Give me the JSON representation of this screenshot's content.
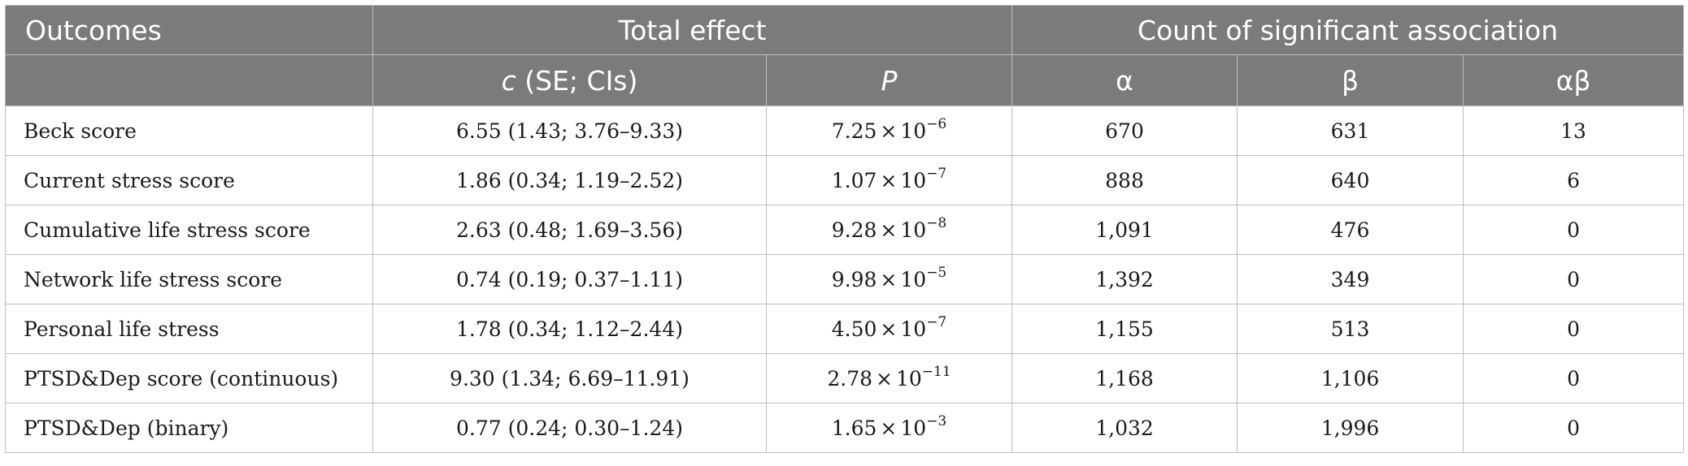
{
  "table": {
    "header_row1": {
      "outcomes": "Outcomes",
      "total_effect": "Total effect",
      "count_sig": "Count of significant association"
    },
    "header_row2": {
      "c_label": "c",
      "c_rest": " (SE; CIs)",
      "p_label": "P",
      "alpha": "α",
      "beta": "β",
      "alphabeta": "αβ"
    },
    "rows": [
      {
        "outcome": "Beck score",
        "c": "6.55 (1.43; 3.76–9.33)",
        "p_mant": "7.25",
        "p_times": "×",
        "p_base": "10",
        "p_exp": "−6",
        "alpha": "670",
        "beta": "631",
        "alphabeta": "13"
      },
      {
        "outcome": "Current stress score",
        "c": "1.86 (0.34; 1.19–2.52)",
        "p_mant": "1.07",
        "p_times": "×",
        "p_base": "10",
        "p_exp": "−7",
        "alpha": "888",
        "beta": "640",
        "alphabeta": "6"
      },
      {
        "outcome": "Cumulative life stress score",
        "c": "2.63 (0.48; 1.69–3.56)",
        "p_mant": "9.28",
        "p_times": "×",
        "p_base": "10",
        "p_exp": "−8",
        "alpha": "1,091",
        "beta": "476",
        "alphabeta": "0"
      },
      {
        "outcome": "Network life stress score",
        "c": "0.74 (0.19; 0.37–1.11)",
        "p_mant": "9.98",
        "p_times": "×",
        "p_base": "10",
        "p_exp": "−5",
        "alpha": "1,392",
        "beta": "349",
        "alphabeta": "0"
      },
      {
        "outcome": "Personal life stress",
        "c": "1.78 (0.34; 1.12–2.44)",
        "p_mant": "4.50",
        "p_times": "×",
        "p_base": "10",
        "p_exp": "−7",
        "alpha": "1,155",
        "beta": "513",
        "alphabeta": "0"
      },
      {
        "outcome": "PTSD&Dep score (continuous)",
        "c": "9.30 (1.34; 6.69–11.91)",
        "p_mant": "2.78",
        "p_times": "×",
        "p_base": "10",
        "p_exp": "−11",
        "alpha": "1,168",
        "beta": "1,106",
        "alphabeta": "0"
      },
      {
        "outcome": "PTSD&Dep (binary)",
        "c": "0.77 (0.24; 0.30–1.24)",
        "p_mant": "1.65",
        "p_times": "×",
        "p_base": "10",
        "p_exp": "−3",
        "alpha": "1,032",
        "beta": "1,996",
        "alphabeta": "0"
      }
    ]
  },
  "colors": {
    "header_bg": "#7b7b7b",
    "header_text": "#ffffff",
    "grid": "#bdbdbd",
    "body_text": "#1a1a1a"
  }
}
